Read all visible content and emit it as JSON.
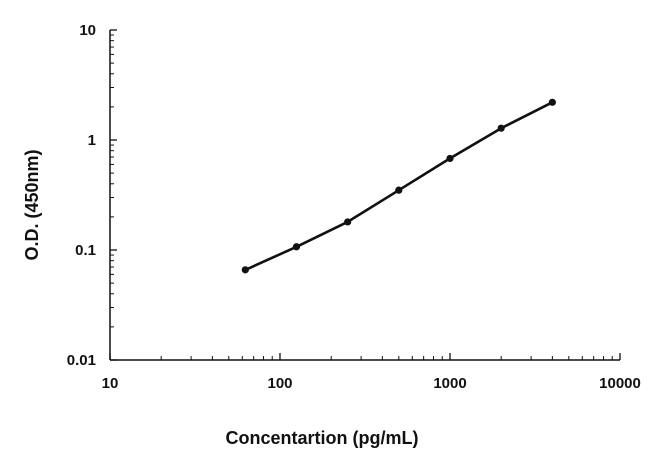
{
  "chart_data": {
    "type": "line",
    "xlabel": "Concentartion (pg/mL)",
    "ylabel": "O.D. (450nm)",
    "x_scale": "log",
    "y_scale": "log",
    "xlim": [
      10,
      10000
    ],
    "ylim": [
      0.01,
      10
    ],
    "x_tick_labels": [
      "10",
      "100",
      "1000",
      "10000"
    ],
    "y_tick_labels": [
      "0.01",
      "0.1",
      "1",
      "10"
    ],
    "grid": false,
    "legend": "none",
    "series": [
      {
        "x": [
          62.5,
          125,
          250,
          500,
          1000,
          2000,
          4000
        ],
        "y": [
          0.066,
          0.107,
          0.18,
          0.35,
          0.68,
          1.28,
          2.2
        ],
        "color": "#111111",
        "marker": "circle"
      }
    ]
  }
}
